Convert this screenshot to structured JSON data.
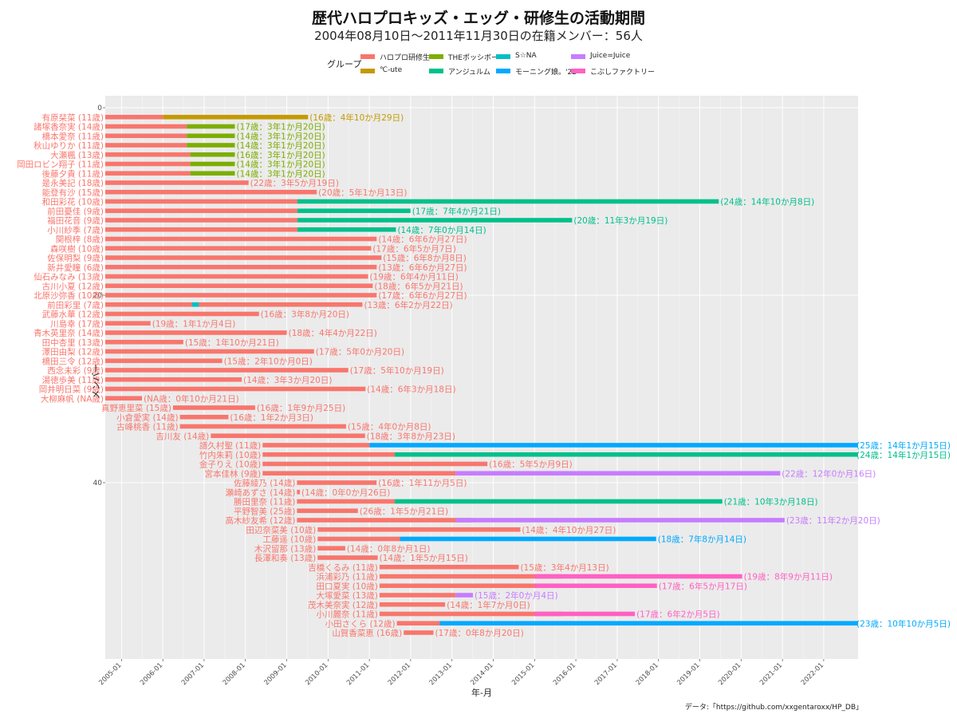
{
  "chart_data": {
    "type": "gantt",
    "title": "歴代ハロプロキッズ・エッグ・研修生の活動期間",
    "subtitle": "2004年08月10日～2011年11月30日の在籍メンバー：56人",
    "xlabel": "年-月",
    "ylabel": "メンバー",
    "source": "データ:「https://github.com/xxgentaroxx/HP_DB」",
    "legend_title": "グループ",
    "x_ticks": [
      "2005-01",
      "2006-01",
      "2007-01",
      "2008-01",
      "2009-01",
      "2010-01",
      "2011-01",
      "2012-01",
      "2013-01",
      "2014-01",
      "2015-01",
      "2016-01",
      "2017-01",
      "2018-01",
      "2019-01",
      "2020-01",
      "2021-01",
      "2022-01"
    ],
    "y_ticks": [
      0,
      20,
      40
    ],
    "xlim": [
      "2004-08-10",
      "2022-11-01"
    ],
    "groups": [
      {
        "key": "kenshu",
        "name": "ハロプロ研修生",
        "color": "#F8766D"
      },
      {
        "key": "cute",
        "name": "℃-ute",
        "color": "#C49A00"
      },
      {
        "key": "poppo",
        "name": "THEポッシボー",
        "color": "#7CAE00"
      },
      {
        "key": "angerme",
        "name": "アンジュルム",
        "color": "#00C08B"
      },
      {
        "key": "sina",
        "name": "S/mileage? S☆NA",
        "color": "#00BFC4"
      },
      {
        "key": "morning",
        "name": "モーニング娘。'22",
        "color": "#00A9FF"
      },
      {
        "key": "juice",
        "name": "Juice=Juice",
        "color": "#C77CFF"
      },
      {
        "key": "kobushi",
        "name": "こぶしファクトリー",
        "color": "#FF61C3"
      }
    ],
    "legend_labels": [
      "ハロプロ研修生",
      "℃-ute",
      "THEポッシボー",
      "アンジュルム",
      "S☆NA",
      "モーニング娘。'22",
      "Juice=Juice",
      "こぶしファクトリー"
    ],
    "members": [
      {
        "name": "有原栞菜 (11歳)",
        "label": "(16歳：4年10か月29日)",
        "label_group": "cute",
        "segments": [
          {
            "g": "kenshu",
            "s": "2004-08-10",
            "e": "2006-01-01"
          },
          {
            "g": "cute",
            "s": "2006-01-01",
            "e": "2009-07-08"
          }
        ]
      },
      {
        "name": "諸塚香奈実 (14歳)",
        "label": "(17歳：3年1か月20日)",
        "label_group": "poppo",
        "segments": [
          {
            "g": "kenshu",
            "s": "2004-08-10",
            "e": "2006-08-01"
          },
          {
            "g": "poppo",
            "s": "2006-08-01",
            "e": "2007-09-30"
          }
        ]
      },
      {
        "name": "橋本愛奈 (11歳)",
        "label": "(14歳：3年1か月20日)",
        "label_group": "poppo",
        "segments": [
          {
            "g": "kenshu",
            "s": "2004-08-10",
            "e": "2006-08-01"
          },
          {
            "g": "poppo",
            "s": "2006-08-01",
            "e": "2007-09-30"
          }
        ]
      },
      {
        "name": "秋山ゆりか (11歳)",
        "label": "(14歳：3年1か月20日)",
        "label_group": "poppo",
        "segments": [
          {
            "g": "kenshu",
            "s": "2004-08-10",
            "e": "2006-08-01"
          },
          {
            "g": "poppo",
            "s": "2006-08-01",
            "e": "2007-09-30"
          }
        ]
      },
      {
        "name": "大瀬楓 (13歳)",
        "label": "(16歳：3年1か月20日)",
        "label_group": "poppo",
        "segments": [
          {
            "g": "kenshu",
            "s": "2004-08-10",
            "e": "2006-09-01"
          },
          {
            "g": "poppo",
            "s": "2006-09-01",
            "e": "2007-09-30"
          }
        ]
      },
      {
        "name": "岡田ロビン翔子 (11歳)",
        "label": "(14歳：3年1か月20日)",
        "label_group": "poppo",
        "segments": [
          {
            "g": "kenshu",
            "s": "2004-08-10",
            "e": "2006-09-01"
          },
          {
            "g": "poppo",
            "s": "2006-09-01",
            "e": "2007-09-30"
          }
        ]
      },
      {
        "name": "後藤夕貴 (11歳)",
        "label": "(14歳：3年1か月20日)",
        "label_group": "poppo",
        "segments": [
          {
            "g": "kenshu",
            "s": "2004-08-10",
            "e": "2006-09-01"
          },
          {
            "g": "poppo",
            "s": "2006-09-01",
            "e": "2007-09-30"
          }
        ]
      },
      {
        "name": "是永美記 (18歳)",
        "label": "(22歳：3年5か月19日)",
        "label_group": "kenshu",
        "segments": [
          {
            "g": "kenshu",
            "s": "2004-08-10",
            "e": "2008-01-29"
          }
        ]
      },
      {
        "name": "能登有沙 (15歳)",
        "label": "(20歳：5年1か月13日)",
        "label_group": "kenshu",
        "segments": [
          {
            "g": "kenshu",
            "s": "2004-08-10",
            "e": "2009-09-23"
          }
        ]
      },
      {
        "name": "和田彩花 (10歳)",
        "label": "(24歳：14年10か月8日)",
        "label_group": "angerme",
        "segments": [
          {
            "g": "kenshu",
            "s": "2004-08-10",
            "e": "2009-04-05"
          },
          {
            "g": "angerme",
            "s": "2009-04-05",
            "e": "2019-06-18"
          }
        ]
      },
      {
        "name": "前田憂佳 (9歳)",
        "label": "(17歳：7年4か月21日)",
        "label_group": "angerme",
        "segments": [
          {
            "g": "kenshu",
            "s": "2004-08-10",
            "e": "2009-04-05"
          },
          {
            "g": "angerme",
            "s": "2009-04-05",
            "e": "2011-12-31"
          }
        ]
      },
      {
        "name": "福田花音 (9歳)",
        "label": "(20歳：11年3か月19日)",
        "label_group": "angerme",
        "segments": [
          {
            "g": "kenshu",
            "s": "2004-08-10",
            "e": "2009-04-05"
          },
          {
            "g": "angerme",
            "s": "2009-04-05",
            "e": "2015-11-29"
          }
        ]
      },
      {
        "name": "小川紗季 (7歳)",
        "label": "(14歳：7年0か月14日)",
        "label_group": "angerme",
        "segments": [
          {
            "g": "kenshu",
            "s": "2004-08-10",
            "e": "2009-04-05"
          },
          {
            "g": "angerme",
            "s": "2009-04-05",
            "e": "2011-08-24"
          }
        ]
      },
      {
        "name": "関根梓 (8歳)",
        "label": "(14歳：6年6か月27日)",
        "label_group": "kenshu",
        "segments": [
          {
            "g": "kenshu",
            "s": "2004-08-10",
            "e": "2011-03-07"
          }
        ]
      },
      {
        "name": "森咲樹 (10歳)",
        "label": "(17歳：6年5か月7日)",
        "label_group": "kenshu",
        "segments": [
          {
            "g": "kenshu",
            "s": "2004-08-10",
            "e": "2011-01-17"
          }
        ]
      },
      {
        "name": "佐保明梨 (9歳)",
        "label": "(15歳：6年8か月8日)",
        "label_group": "kenshu",
        "segments": [
          {
            "g": "kenshu",
            "s": "2004-08-10",
            "e": "2011-04-18"
          }
        ]
      },
      {
        "name": "新井愛瞳 (6歳)",
        "label": "(13歳：6年6か月27日)",
        "label_group": "kenshu",
        "segments": [
          {
            "g": "kenshu",
            "s": "2004-08-10",
            "e": "2011-03-07"
          }
        ]
      },
      {
        "name": "仙石みなみ (13歳)",
        "label": "(19歳：6年4か月11日)",
        "label_group": "kenshu",
        "segments": [
          {
            "g": "kenshu",
            "s": "2004-08-10",
            "e": "2010-12-21"
          }
        ]
      },
      {
        "name": "古川小夏 (12歳)",
        "label": "(18歳：6年5か月21日)",
        "label_group": "kenshu",
        "segments": [
          {
            "g": "kenshu",
            "s": "2004-08-10",
            "e": "2011-01-31"
          }
        ]
      },
      {
        "name": "北原沙弥香 (10歳)",
        "label": "(17歳：6年6か月27日)",
        "label_group": "kenshu",
        "segments": [
          {
            "g": "kenshu",
            "s": "2004-08-10",
            "e": "2011-03-07"
          }
        ]
      },
      {
        "name": "前田彩里 (7歳)",
        "label": "(13歳：6年2か月22日)",
        "label_group": "kenshu",
        "segments": [
          {
            "g": "kenshu",
            "s": "2004-08-10",
            "e": "2010-11-01"
          },
          {
            "g": "sina",
            "s": "2006-09-15",
            "e": "2006-11-15"
          }
        ]
      },
      {
        "name": "武藤水華 (12歳)",
        "label": "(16歳：3年8か月20日)",
        "label_group": "kenshu",
        "segments": [
          {
            "g": "kenshu",
            "s": "2004-08-10",
            "e": "2008-04-30"
          }
        ]
      },
      {
        "name": "川島幸 (17歳)",
        "label": "(19歳：1年1か月4日)",
        "label_group": "kenshu",
        "segments": [
          {
            "g": "kenshu",
            "s": "2004-08-10",
            "e": "2005-09-14"
          }
        ]
      },
      {
        "name": "青木英里奈 (14歳)",
        "label": "(18歳：4年4か月22日)",
        "label_group": "kenshu",
        "segments": [
          {
            "g": "kenshu",
            "s": "2004-08-10",
            "e": "2009-01-01"
          }
        ]
      },
      {
        "name": "田中杏里 (13歳)",
        "label": "(15歳：1年10か月21日)",
        "label_group": "kenshu",
        "segments": [
          {
            "g": "kenshu",
            "s": "2004-08-10",
            "e": "2006-07-01"
          }
        ]
      },
      {
        "name": "澤田由梨 (12歳)",
        "label": "(17歳：5年0か月20日)",
        "label_group": "kenshu",
        "segments": [
          {
            "g": "kenshu",
            "s": "2004-08-10",
            "e": "2009-08-30"
          }
        ]
      },
      {
        "name": "橋田三令 (12歳)",
        "label": "(15歳：2年10か月0日)",
        "label_group": "kenshu",
        "segments": [
          {
            "g": "kenshu",
            "s": "2004-08-10",
            "e": "2007-06-10"
          }
        ]
      },
      {
        "name": "西念未彩 (9歳)",
        "label": "(17歳：5年10か月19日)",
        "label_group": "kenshu",
        "segments": [
          {
            "g": "kenshu",
            "s": "2004-08-10",
            "e": "2010-06-29"
          }
        ]
      },
      {
        "name": "湯徳歩美 (11歳)",
        "label": "(14歳：3年3か月20日)",
        "label_group": "kenshu",
        "segments": [
          {
            "g": "kenshu",
            "s": "2004-08-10",
            "e": "2007-11-30"
          }
        ]
      },
      {
        "name": "岡井明日菜 (9歳)",
        "label": "(14歳：6年3か月18日)",
        "label_group": "kenshu",
        "segments": [
          {
            "g": "kenshu",
            "s": "2004-08-10",
            "e": "2010-11-28"
          }
        ]
      },
      {
        "name": "大柳麻帆 (NA歳)",
        "label": "(NA歳：0年10か月21日)",
        "label_group": "kenshu",
        "segments": [
          {
            "g": "kenshu",
            "s": "2004-08-10",
            "e": "2005-07-01"
          }
        ]
      },
      {
        "name": "真野恵里菜 (15歳)",
        "label": "(16歳：1年9か月25日)",
        "label_group": "kenshu",
        "segments": [
          {
            "g": "kenshu",
            "s": "2006-04-01",
            "e": "2008-03-27"
          }
        ]
      },
      {
        "name": "小倉愛実 (14歳)",
        "label": "(16歳：1年2か月3日)",
        "label_group": "kenshu",
        "segments": [
          {
            "g": "kenshu",
            "s": "2006-06-01",
            "e": "2007-08-04"
          }
        ]
      },
      {
        "name": "古峰桃香 (11歳)",
        "label": "(15歳：4年0か月8日)",
        "label_group": "kenshu",
        "segments": [
          {
            "g": "kenshu",
            "s": "2006-06-01",
            "e": "2010-06-09"
          }
        ]
      },
      {
        "name": "吉川友 (14歳)",
        "label": "(18歳：3年8か月23日)",
        "label_group": "kenshu",
        "segments": [
          {
            "g": "kenshu",
            "s": "2007-03-01",
            "e": "2010-11-24"
          }
        ]
      },
      {
        "name": "譜久村聖 (11歳)",
        "label": "(25歳：14年1か月15日)",
        "label_group": "morning",
        "segments": [
          {
            "g": "kenshu",
            "s": "2008-06-01",
            "e": "2011-01-02"
          },
          {
            "g": "morning",
            "s": "2011-01-02",
            "e": "2022-11-01"
          }
        ]
      },
      {
        "name": "竹内朱莉 (10歳)",
        "label": "(24歳：14年1か月15日)",
        "label_group": "angerme",
        "segments": [
          {
            "g": "kenshu",
            "s": "2008-06-01",
            "e": "2011-08-14"
          },
          {
            "g": "angerme",
            "s": "2011-08-14",
            "e": "2022-11-01"
          }
        ]
      },
      {
        "name": "金子りえ (10歳)",
        "label": "(16歳：5年5か月9日)",
        "label_group": "kenshu",
        "segments": [
          {
            "g": "kenshu",
            "s": "2008-06-01",
            "e": "2013-11-10"
          }
        ]
      },
      {
        "name": "宮本佳林 (9歳)",
        "label": "(22歳：12年0か月16日)",
        "label_group": "juice",
        "segments": [
          {
            "g": "kenshu",
            "s": "2008-06-01",
            "e": "2013-02-01"
          },
          {
            "g": "juice",
            "s": "2013-02-01",
            "e": "2020-12-12"
          }
        ]
      },
      {
        "name": "佐藤綾乃 (14歳)",
        "label": "(16歳：1年11か月5日)",
        "label_group": "kenshu",
        "segments": [
          {
            "g": "kenshu",
            "s": "2009-04-01",
            "e": "2011-03-06"
          }
        ]
      },
      {
        "name": "瀬崎あずさ (14歳)",
        "label": "(14歳：0年0か月26日)",
        "label_group": "kenshu",
        "segments": [
          {
            "g": "kenshu",
            "s": "2009-04-01",
            "e": "2009-04-27"
          }
        ]
      },
      {
        "name": "勝田里奈 (11歳)",
        "label": "(21歳：10年3か月18日)",
        "label_group": "angerme",
        "segments": [
          {
            "g": "kenshu",
            "s": "2009-04-01",
            "e": "2011-08-14"
          },
          {
            "g": "angerme",
            "s": "2011-08-14",
            "e": "2019-07-19"
          }
        ]
      },
      {
        "name": "平野智美 (25歳)",
        "label": "(26歳：1年5か月21日)",
        "label_group": "kenshu",
        "segments": [
          {
            "g": "kenshu",
            "s": "2009-04-01",
            "e": "2010-09-22"
          }
        ]
      },
      {
        "name": "高木紗友希 (12歳)",
        "label": "(23歳：11年2か月20日)",
        "label_group": "juice",
        "segments": [
          {
            "g": "kenshu",
            "s": "2009-04-01",
            "e": "2013-06-15"
          },
          {
            "g": "juice",
            "s": "2013-02-01",
            "e": "2021-01-20"
          }
        ]
      },
      {
        "name": "田辺奈菜美 (10歳)",
        "label": "(14歳：4年10か月27日)",
        "label_group": "kenshu",
        "segments": [
          {
            "g": "kenshu",
            "s": "2009-10-01",
            "e": "2014-08-28"
          }
        ]
      },
      {
        "name": "工藤遥 (10歳)",
        "label": "(18歳：7年8か月14日)",
        "label_group": "morning",
        "segments": [
          {
            "g": "kenshu",
            "s": "2009-10-01",
            "e": "2011-09-29"
          },
          {
            "g": "morning",
            "s": "2011-09-29",
            "e": "2017-12-11"
          }
        ]
      },
      {
        "name": "木沢留那 (13歳)",
        "label": "(14歳：0年8か月1日)",
        "label_group": "kenshu",
        "segments": [
          {
            "g": "kenshu",
            "s": "2009-10-01",
            "e": "2010-06-02"
          }
        ]
      },
      {
        "name": "長澤和奏 (13歳)",
        "label": "(14歳：1年5か月15日)",
        "label_group": "kenshu",
        "segments": [
          {
            "g": "kenshu",
            "s": "2009-10-01",
            "e": "2011-03-16"
          }
        ]
      },
      {
        "name": "吉橋くるみ (11歳)",
        "label": "(15歳：3年4か月13日)",
        "label_group": "kenshu",
        "segments": [
          {
            "g": "kenshu",
            "s": "2011-04-01",
            "e": "2014-08-14"
          }
        ]
      },
      {
        "name": "浜浦彩乃 (11歳)",
        "label": "(19歳：8年9か月11日)",
        "label_group": "kobushi",
        "segments": [
          {
            "g": "kenshu",
            "s": "2011-04-01",
            "e": "2015-09-01"
          },
          {
            "g": "kobushi",
            "s": "2015-01-02",
            "e": "2020-01-11"
          }
        ]
      },
      {
        "name": "田口夏実 (10歳)",
        "label": "(17歳：6年5か月17日)",
        "label_group": "kobushi",
        "segments": [
          {
            "g": "kenshu",
            "s": "2011-04-01",
            "e": "2015-09-01"
          },
          {
            "g": "kobushi",
            "s": "2015-01-02",
            "e": "2017-12-18"
          }
        ]
      },
      {
        "name": "大塚愛菜 (13歳)",
        "label": "(15歳：2年0か月4日)",
        "label_group": "juice",
        "segments": [
          {
            "g": "kenshu",
            "s": "2011-04-01",
            "e": "2013-02-01"
          },
          {
            "g": "juice",
            "s": "2013-02-01",
            "e": "2013-07-05"
          }
        ]
      },
      {
        "name": "茂木美奈実 (12歳)",
        "label": "(14歳：1年7か月0日)",
        "label_group": "kenshu",
        "segments": [
          {
            "g": "kenshu",
            "s": "2011-04-01",
            "e": "2012-11-01"
          }
        ]
      },
      {
        "name": "小川麗奈 (11歳)",
        "label": "(17歳：6年2か月5日)",
        "label_group": "kobushi",
        "segments": [
          {
            "g": "kenshu",
            "s": "2011-04-01",
            "e": "2015-09-01"
          },
          {
            "g": "kobushi",
            "s": "2015-01-02",
            "e": "2017-06-06"
          }
        ]
      },
      {
        "name": "小田さくら (12歳)",
        "label": "(23歳：10年10か月5日)",
        "label_group": "morning",
        "segments": [
          {
            "g": "kenshu",
            "s": "2011-09-01",
            "e": "2012-09-14"
          },
          {
            "g": "morning",
            "s": "2012-09-14",
            "e": "2022-11-01"
          }
        ]
      },
      {
        "name": "山賀香菜恵 (16歳)",
        "label": "(17歳：0年8か月20日)",
        "label_group": "kenshu",
        "segments": [
          {
            "g": "kenshu",
            "s": "2011-11-01",
            "e": "2012-07-21"
          }
        ]
      }
    ]
  }
}
